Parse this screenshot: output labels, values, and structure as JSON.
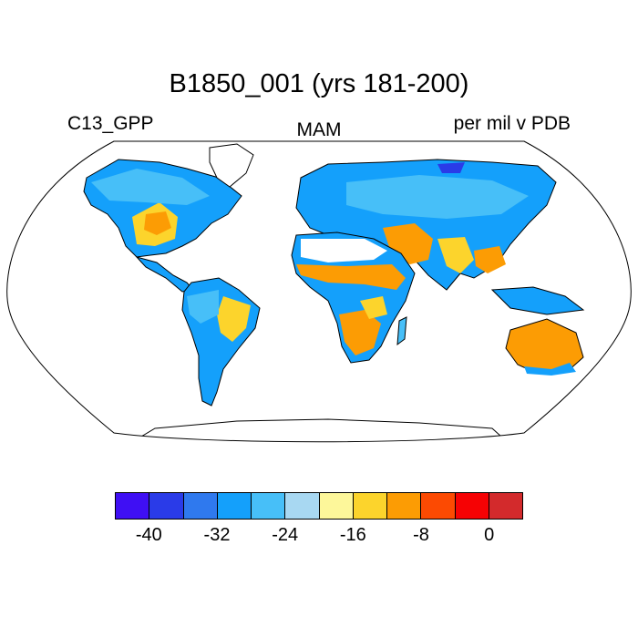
{
  "header": {
    "title": "B1850_001 (yrs 181-200)",
    "left": "C13_GPP",
    "center": "MAM",
    "right": "per mil v PDB"
  },
  "colorbar": {
    "colors": [
      "#3f0ff4",
      "#2a3be8",
      "#2f79ee",
      "#14a0fb",
      "#47bff8",
      "#a8d8f2",
      "#fdf79a",
      "#fcd42c",
      "#fc9c04",
      "#fc4a02",
      "#f60204",
      "#d32a2c"
    ],
    "labels": [
      "-40",
      "-32",
      "-24",
      "-16",
      "-8",
      "0"
    ]
  },
  "map": {
    "projection": "Robinson",
    "land_outline_color": "#000000",
    "missing_color": "#ffffff"
  }
}
